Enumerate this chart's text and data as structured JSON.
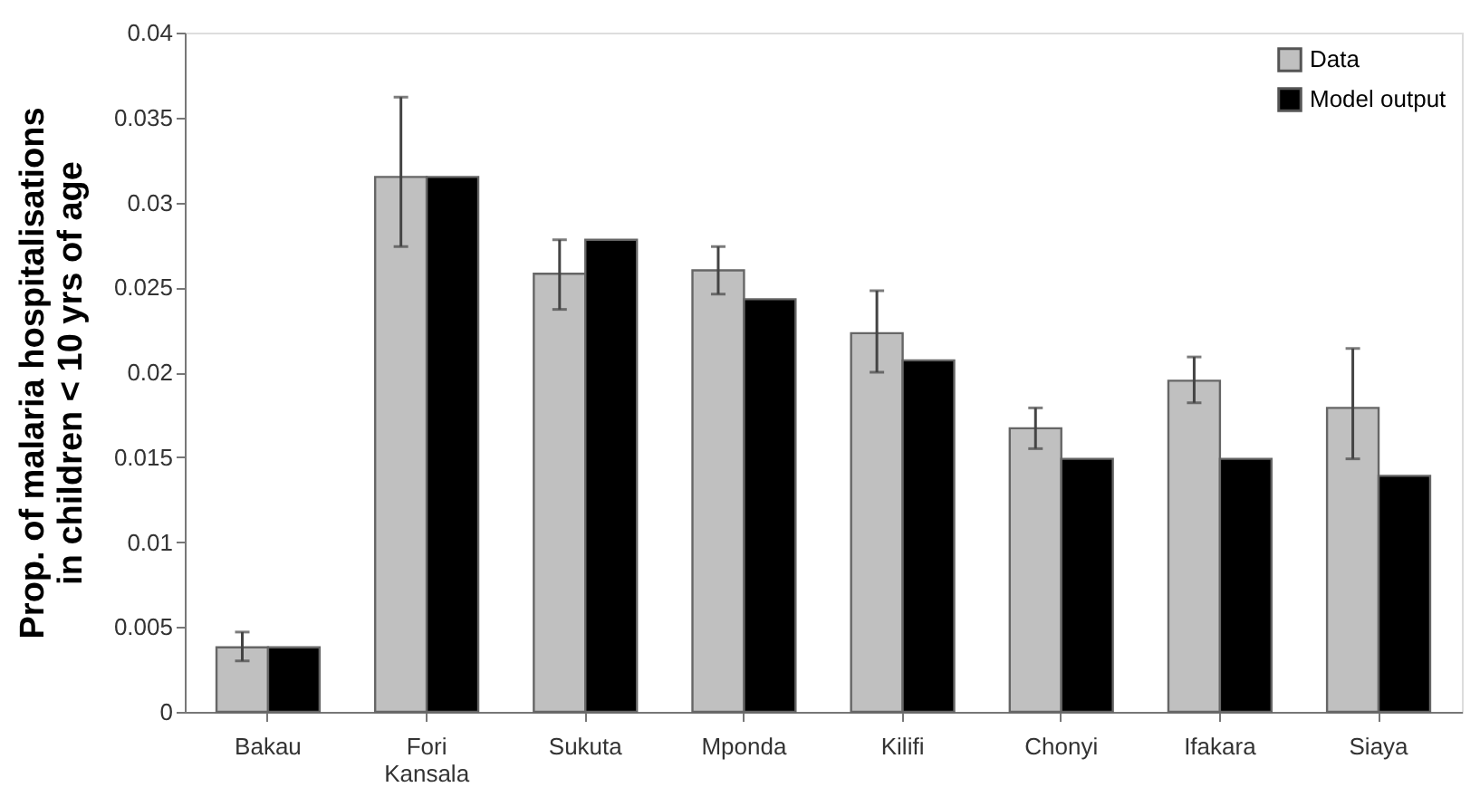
{
  "chart_data": {
    "type": "bar",
    "ylabel": "Prop. of malaria hospitalisations in children < 10 yrs of age",
    "categories": [
      "Bakau",
      "Fori Kansala",
      "Sukuta",
      "Mponda",
      "Kilifi",
      "Chonyi",
      "Ifakara",
      "Siaya"
    ],
    "series": [
      {
        "name": "Data",
        "color": "#c0c0c0",
        "values": [
          0.0038,
          0.0315,
          0.0258,
          0.026,
          0.0223,
          0.0167,
          0.0195,
          0.0179
        ],
        "errors": [
          [
            0.003,
            0.0047
          ],
          [
            0.0274,
            0.0362
          ],
          [
            0.0237,
            0.0278
          ],
          [
            0.0246,
            0.0274
          ],
          [
            0.02,
            0.0248
          ],
          [
            0.0155,
            0.0179
          ],
          [
            0.0182,
            0.0209
          ],
          [
            0.0149,
            0.0214
          ]
        ]
      },
      {
        "name": "Model output",
        "color": "#000000",
        "values": [
          0.0038,
          0.0315,
          0.0278,
          0.0243,
          0.0207,
          0.0149,
          0.0149,
          0.0139
        ]
      }
    ],
    "ylim": [
      0,
      0.04
    ],
    "yticks": [
      0,
      0.005,
      0.01,
      0.015,
      0.02,
      0.025,
      0.03,
      0.035,
      0.04
    ],
    "grid": false,
    "legend": "top right"
  }
}
